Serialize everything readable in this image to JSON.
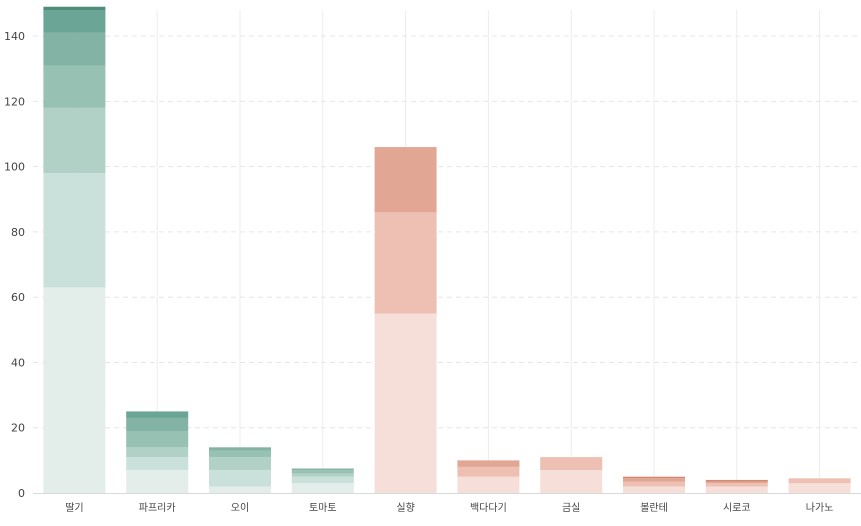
{
  "chart_data": {
    "type": "bar",
    "stacked": true,
    "title": "",
    "xlabel": "",
    "ylabel": "",
    "ylim": [
      0,
      148
    ],
    "y_ticks": [
      0,
      20,
      40,
      60,
      80,
      100,
      120,
      140
    ],
    "grid": {
      "horizontal": "dashed",
      "vertical": "solid"
    },
    "legend": "none",
    "categories": [
      "딸기",
      "파프리카",
      "오이",
      "토마토",
      "실향",
      "백다다기",
      "금실",
      "볼란테",
      "시로코",
      "나가노"
    ],
    "category_groups": [
      "green",
      "green",
      "green",
      "green",
      "red",
      "red",
      "red",
      "red",
      "red",
      "red"
    ],
    "palettes": {
      "green": [
        "#e3eeea",
        "#cae1db",
        "#b1d0c6",
        "#97c2b3",
        "#83b3a4",
        "#6aa595",
        "#4f8e7c"
      ],
      "red": [
        "#f7dfd9",
        "#edc0b3",
        "#e2a694",
        "#d38a75",
        "#c46d57",
        "#b25540",
        "#9c4230"
      ]
    },
    "series": [
      {
        "values": [
          63,
          7,
          2,
          3,
          55,
          5,
          7,
          2,
          2,
          3
        ]
      },
      {
        "values": [
          35,
          4,
          5,
          2,
          31,
          3,
          4,
          1.5,
          1,
          1.5
        ]
      },
      {
        "values": [
          20,
          3,
          4,
          1,
          20,
          2,
          0,
          1,
          0.5,
          0
        ]
      },
      {
        "values": [
          13,
          5,
          2,
          1,
          0,
          0,
          0,
          0.5,
          0.5,
          0
        ]
      },
      {
        "values": [
          10,
          4,
          1,
          0.5,
          0,
          0,
          0,
          0,
          0,
          0
        ]
      },
      {
        "values": [
          7,
          2,
          0,
          0,
          0,
          0,
          0,
          0,
          0,
          0
        ]
      },
      {
        "values": [
          1,
          0,
          0,
          0,
          0,
          0,
          0,
          0,
          0,
          0
        ]
      }
    ]
  }
}
